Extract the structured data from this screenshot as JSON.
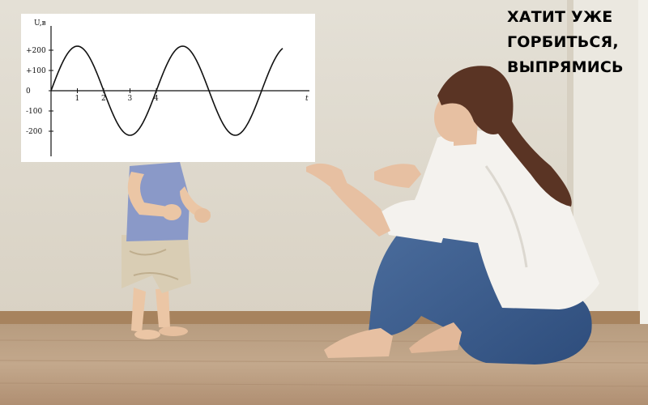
{
  "caption": {
    "lines": [
      "ХАТИТ УЖЕ",
      "ГОРБИТЬСЯ,",
      "ВЫПРЯМИСЬ"
    ]
  },
  "chart_data": {
    "type": "line",
    "xlabel": "t",
    "ylabel": "U,в",
    "x_ticks": [
      "1",
      "2",
      "3",
      "4"
    ],
    "y_ticks": [
      "+200",
      "+100",
      "0",
      "-100",
      "-200"
    ],
    "ylim": [
      -250,
      250
    ],
    "grid": false,
    "series": [
      {
        "x": [
          0,
          0.5,
          1,
          1.5,
          2,
          2.5,
          3,
          3.5,
          4,
          4.5,
          5,
          5.5,
          6,
          6.5,
          7,
          7.5,
          8,
          8.5,
          8.8
        ],
        "values": [
          0,
          155,
          220,
          155,
          0,
          -155,
          -220,
          -155,
          0,
          155,
          220,
          155,
          0,
          -155,
          -220,
          -155,
          0,
          155,
          150
        ]
      }
    ]
  }
}
